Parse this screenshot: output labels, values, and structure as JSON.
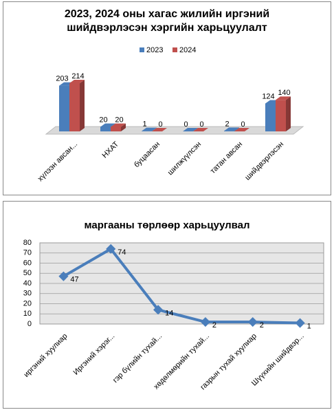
{
  "chart_data": [
    {
      "type": "bar3d",
      "title": "2023, 2024 оны хагас жилийн иргэний шийдвэрлэсэн хэргийн харьцуулалт",
      "categories": [
        "хүлээн авсан...",
        "НХАТ",
        "буцаасан",
        "шилжүүлсэн",
        "татан авсан",
        "шийдвэрлэсэн"
      ],
      "series": [
        {
          "name": "2023",
          "color": "#4a7ebb",
          "values": [
            203,
            20,
            1,
            0,
            2,
            124
          ]
        },
        {
          "name": "2024",
          "color": "#c0504d",
          "values": [
            214,
            20,
            0,
            0,
            0,
            140
          ]
        }
      ],
      "legend": "top"
    },
    {
      "type": "line",
      "title": "маргааны төрлөөр харьцуулвал",
      "categories": [
        "иргэний хуулиар",
        "Иргэний хэрэг...",
        "гэр бүлийн тухай...",
        "хөдөлмөрийн тухай...",
        "газрын тухай хуулиар",
        "Шүүхийн шийдвэр..."
      ],
      "values": [
        47,
        74,
        14,
        2,
        2,
        1
      ],
      "color": "#4a7ebb",
      "ylim": [
        0,
        80
      ],
      "yticks": [
        0,
        10,
        20,
        30,
        40,
        50,
        60,
        70,
        80
      ],
      "grid": true
    }
  ]
}
